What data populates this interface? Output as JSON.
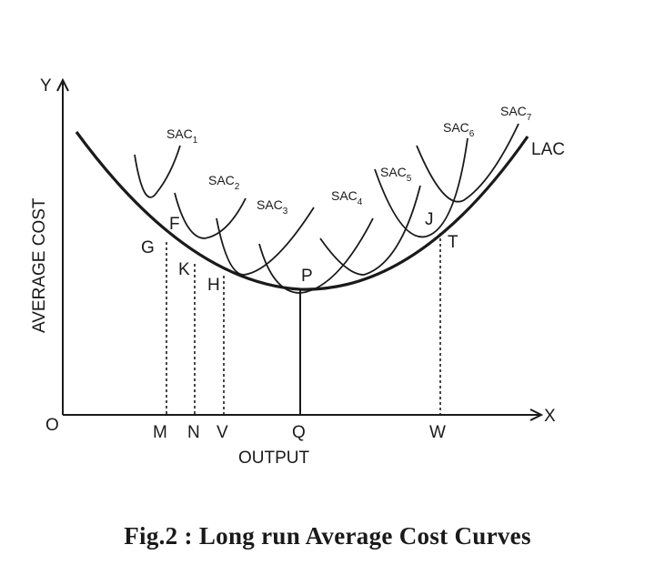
{
  "diagram": {
    "axes": {
      "y_label": "Y",
      "x_label": "X",
      "origin_label": "O",
      "y_title": "AVERAGE COST",
      "x_title": "OUTPUT"
    },
    "envelope": {
      "label": "LAC"
    },
    "sac_curves": [
      {
        "base": "SAC",
        "sub": "1"
      },
      {
        "base": "SAC",
        "sub": "2"
      },
      {
        "base": "SAC",
        "sub": "3"
      },
      {
        "base": "SAC",
        "sub": "4"
      },
      {
        "base": "SAC",
        "sub": "5"
      },
      {
        "base": "SAC",
        "sub": "6"
      },
      {
        "base": "SAC",
        "sub": "7"
      }
    ],
    "points": {
      "G": "G",
      "F": "F",
      "K": "K",
      "H": "H",
      "P": "P",
      "J": "J",
      "T": "T"
    },
    "x_ticks": [
      "M",
      "N",
      "V",
      "Q",
      "W"
    ]
  },
  "caption": "Fig.2 : Long run Average Cost Curves"
}
